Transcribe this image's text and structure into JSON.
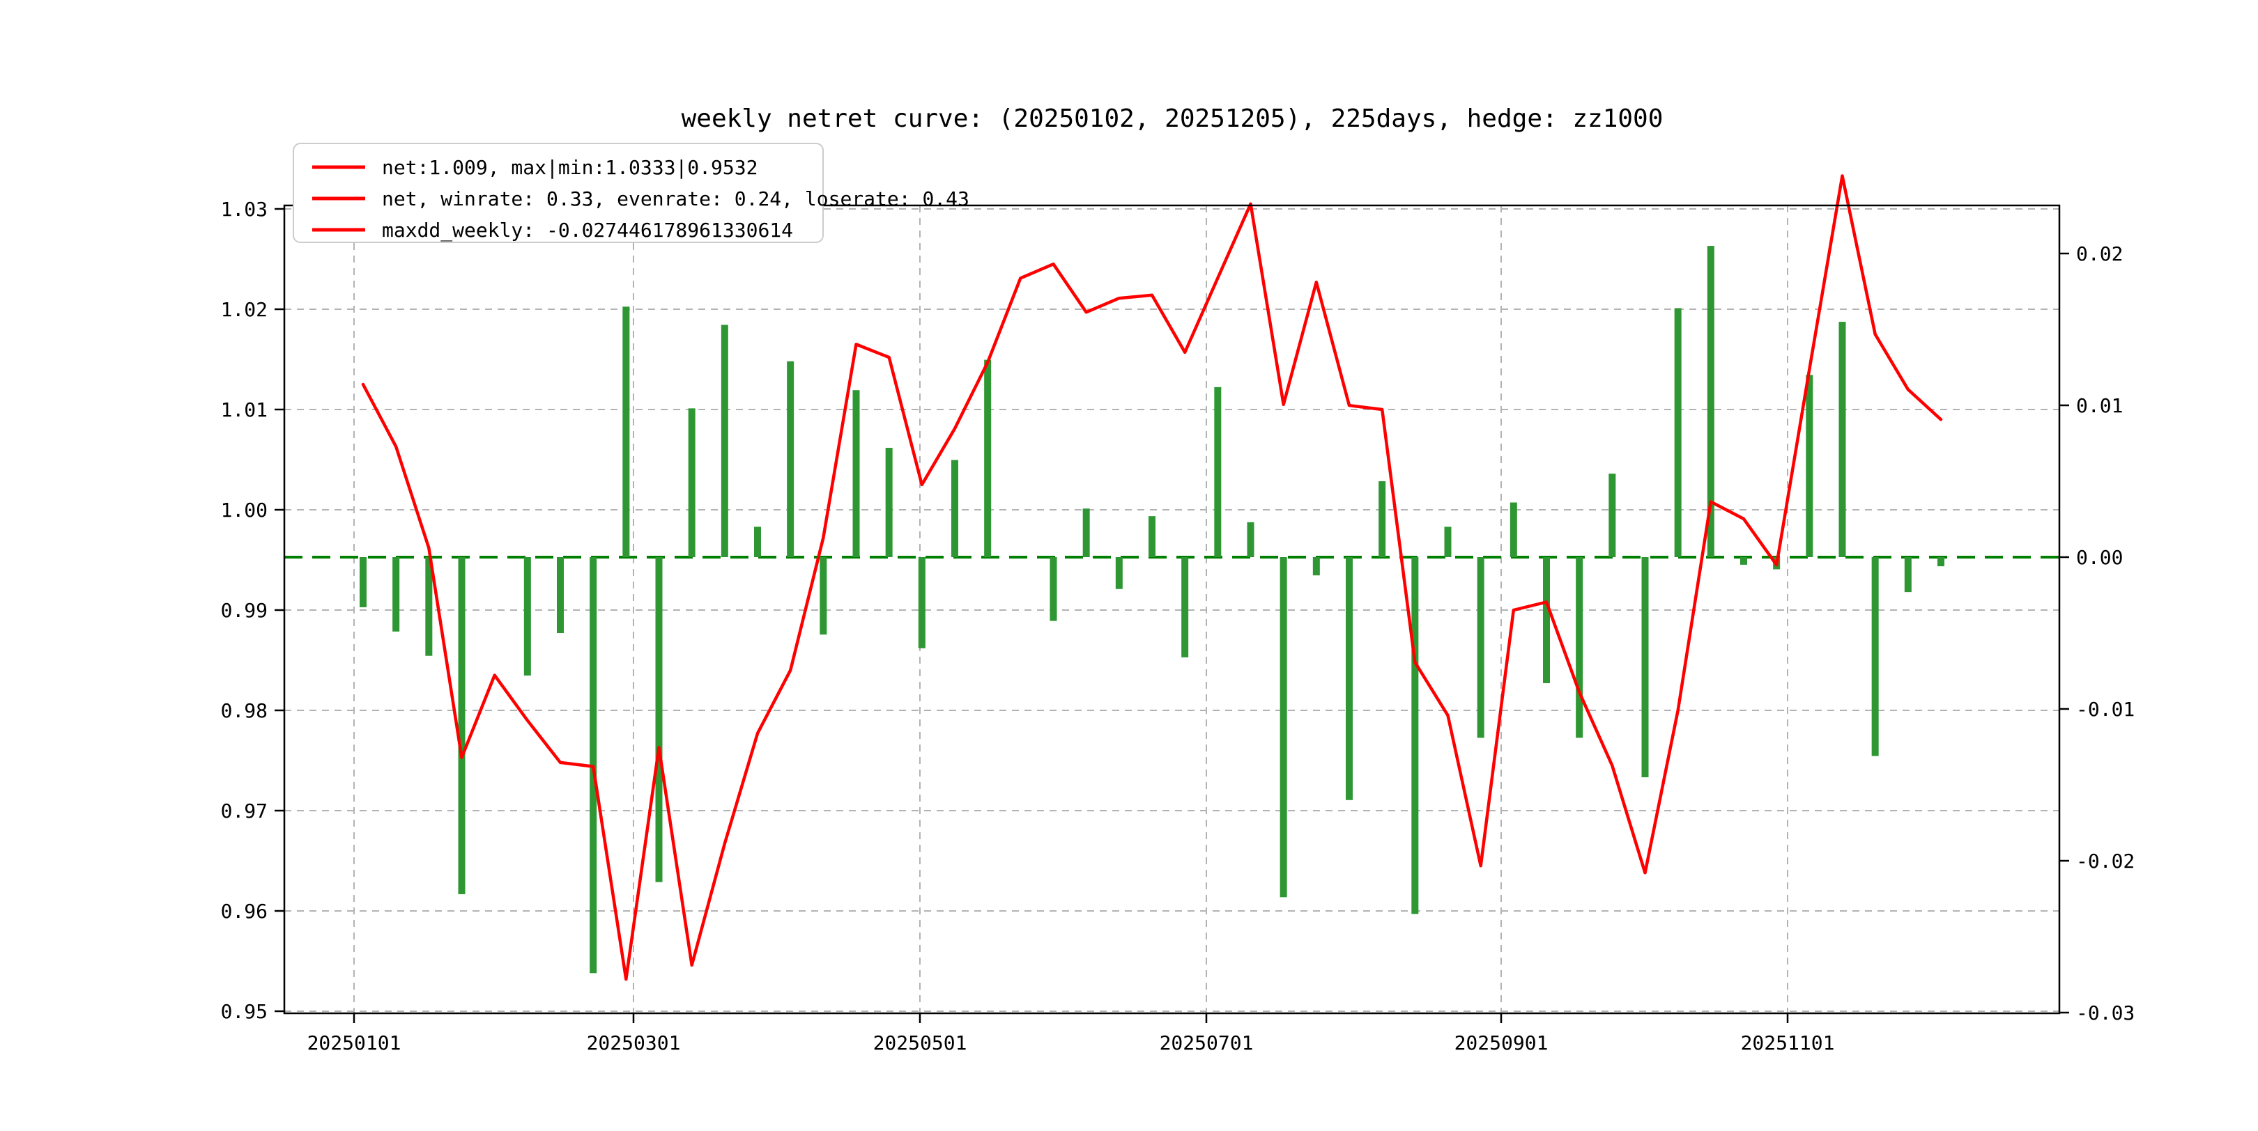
{
  "title": "weekly netret curve: (20250102, 20251205), 225days, hedge: zz1000",
  "legend": {
    "entries": [
      "net:1.009, max|min:1.0333|0.9532",
      "net, winrate: 0.33, evenrate: 0.24, loserate: 0.43",
      "maxdd_weekly: -0.027446178961330614"
    ]
  },
  "colors": {
    "net_line": "#ff0000",
    "weekly_bar": "#2e9733",
    "zero_line": "#008000",
    "grid": "#b3b3b3",
    "frame": "#000000",
    "legend_border": "#cccccc"
  },
  "axes": {
    "left_ticks": [
      "1.03",
      "1.02",
      "1.01",
      "1.00",
      "0.99",
      "0.98",
      "0.97",
      "0.96",
      "0.95"
    ],
    "left_tick_values": [
      1.03,
      1.02,
      1.01,
      1.0,
      0.99,
      0.98,
      0.97,
      0.96,
      0.95
    ],
    "right_ticks": [
      "0.02",
      "0.01",
      "0.00",
      "-0.01",
      "-0.02",
      "-0.03"
    ],
    "right_tick_values": [
      0.02,
      0.01,
      0.0,
      -0.01,
      -0.02,
      -0.03
    ],
    "x_ticks": [
      "20250101",
      "20250301",
      "20250501",
      "20250701",
      "20250901",
      "20251101"
    ],
    "grid": "dashed"
  },
  "chart_data": {
    "type": "combo",
    "title": "weekly netret curve: (20250102, 20251205), 225days, hedge: zz1000",
    "x_tick_labels": [
      "20250101",
      "20250301",
      "20250501",
      "20250701",
      "20250901",
      "20251101"
    ],
    "left_ylim": [
      0.9497,
      1.0305
    ],
    "right_ylim": [
      -0.03,
      0.023
    ],
    "legend_position": "upper left",
    "dates": [
      "20250103",
      "20250110",
      "20250117",
      "20250124",
      "20250131",
      "20250207",
      "20250214",
      "20250221",
      "20250228",
      "20250307",
      "20250314",
      "20250321",
      "20250328",
      "20250404",
      "20250411",
      "20250418",
      "20250425",
      "20250502",
      "20250509",
      "20250516",
      "20250523",
      "20250530",
      "20250606",
      "20250613",
      "20250620",
      "20250627",
      "20250704",
      "20250711",
      "20250718",
      "20250725",
      "20250801",
      "20250808",
      "20250815",
      "20250822",
      "20250829",
      "20250905",
      "20250912",
      "20250919",
      "20250926",
      "20251003",
      "20251010",
      "20251017",
      "20251024",
      "20251031",
      "20251107",
      "20251114",
      "20251121",
      "20251128",
      "20251205"
    ],
    "series": [
      {
        "name": "net",
        "type": "line",
        "axis": "left",
        "values": [
          1.0125,
          1.0063,
          0.9962,
          0.9753,
          0.9835,
          0.979,
          0.9748,
          0.9744,
          0.9532,
          0.9763,
          0.9546,
          0.9667,
          0.9777,
          0.984,
          0.9972,
          1.0165,
          1.0152,
          1.0025,
          1.0081,
          1.0147,
          1.0231,
          1.0245,
          1.0197,
          1.0211,
          1.0214,
          1.0157,
          1.0231,
          1.0305,
          1.0105,
          1.0227,
          1.0104,
          1.01,
          0.9848,
          0.9795,
          0.9645,
          0.99,
          0.9908,
          0.9818,
          0.9745,
          0.9638,
          0.98,
          1.0008,
          0.9991,
          0.9945,
          1.014,
          1.0333,
          1.0175,
          1.012,
          1.009
        ],
        "stats": {
          "net": 1.009,
          "max": 1.0333,
          "min": 0.9532
        }
      },
      {
        "name": "weekly_netret",
        "type": "bar",
        "axis": "right",
        "values": [
          -0.0033,
          -0.0049,
          -0.0065,
          -0.0222,
          0.0,
          -0.0078,
          -0.005,
          -0.0274,
          0.0165,
          -0.0214,
          0.0098,
          0.0153,
          0.002,
          0.0129,
          -0.0051,
          0.011,
          0.0072,
          -0.006,
          0.0064,
          0.013,
          0.0,
          -0.0042,
          0.0032,
          -0.0021,
          0.0027,
          -0.0066,
          0.0112,
          0.0023,
          -0.0224,
          -0.0012,
          -0.016,
          0.005,
          -0.0235,
          0.002,
          -0.0119,
          0.0036,
          -0.0083,
          -0.0119,
          0.0055,
          -0.0145,
          0.0164,
          0.0205,
          -0.0005,
          -0.0008,
          0.012,
          0.0155,
          -0.0131,
          -0.0023,
          -0.0006
        ],
        "stats": {
          "winrate": 0.33,
          "evenrate": 0.24,
          "loserate": 0.43,
          "maxdd_weekly": -0.027446178961330614
        }
      }
    ]
  }
}
